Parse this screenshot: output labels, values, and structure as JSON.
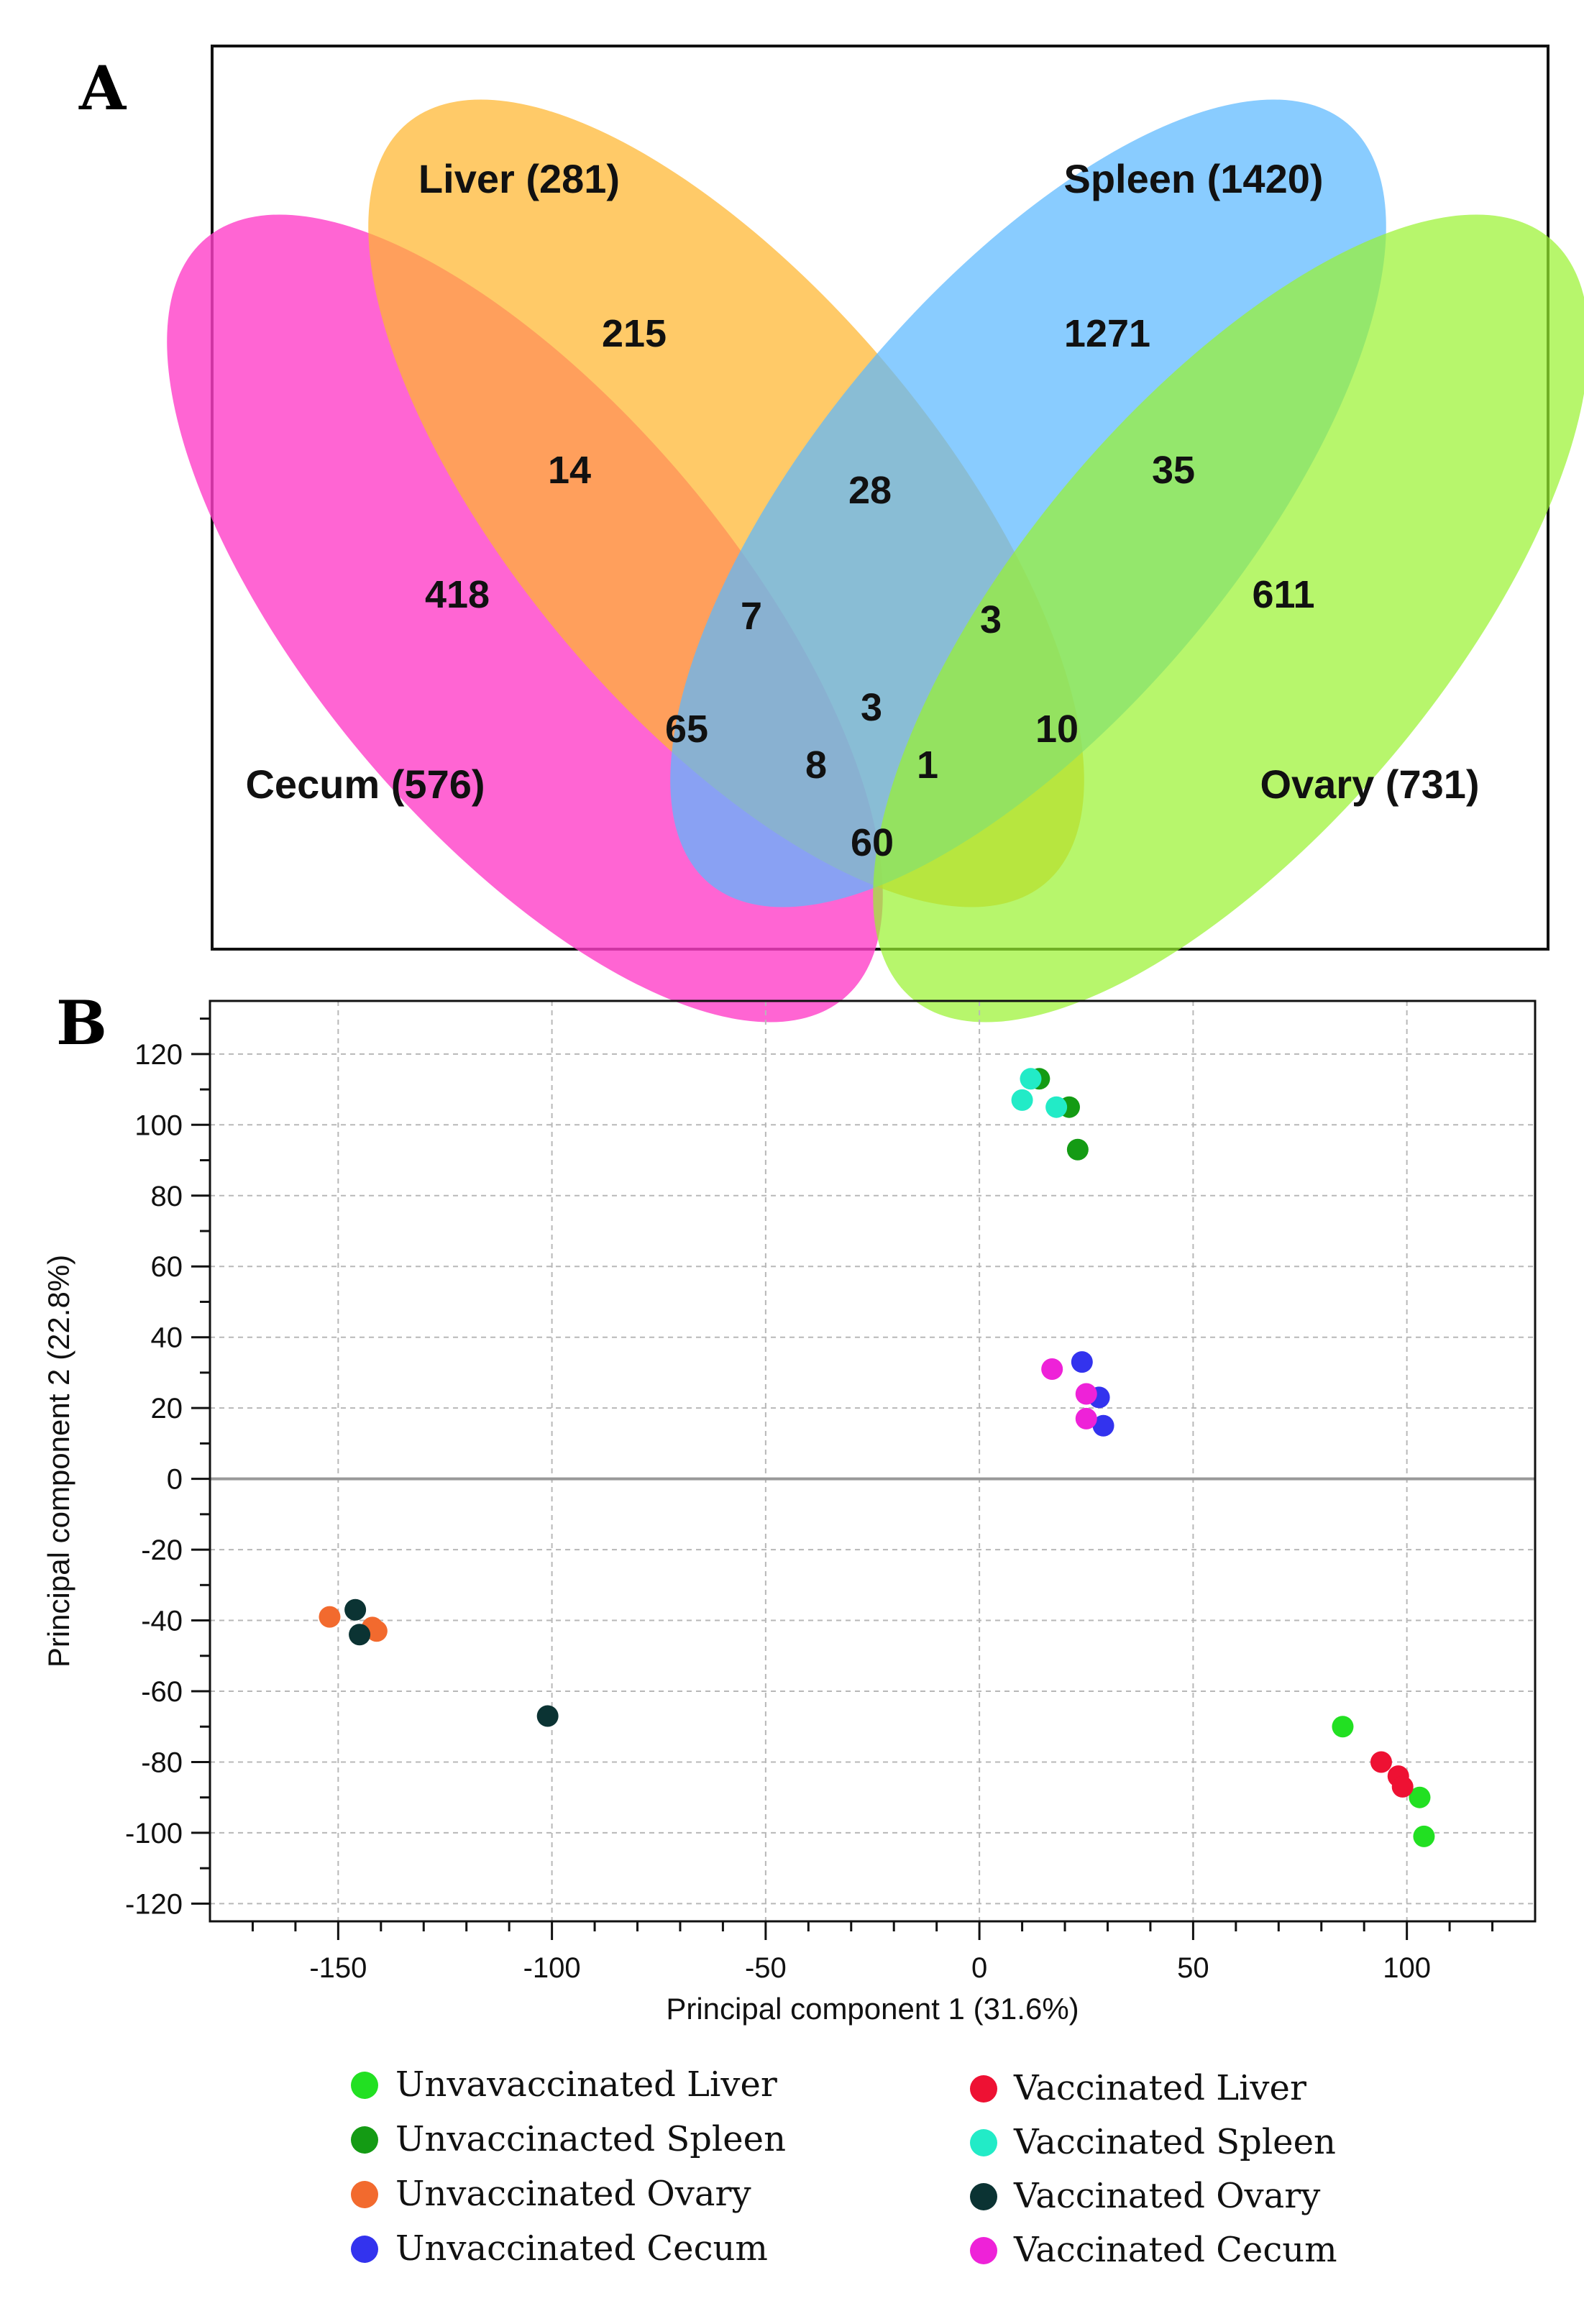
{
  "chart_data": [
    {
      "type": "venn",
      "panel_label": "A",
      "sets": [
        {
          "key": "cecum",
          "name": "Cecum (576)",
          "color": "#ff3ec8"
        },
        {
          "key": "liver",
          "name": "Liver (281)",
          "color": "#ffb52e"
        },
        {
          "key": "spleen",
          "name": "Spleen (1420)",
          "color": "#5cb8ff"
        },
        {
          "key": "ovary",
          "name": "Ovary (731)",
          "color": "#98f22e"
        }
      ],
      "regions": [
        {
          "sets": [
            "liver"
          ],
          "value": "215"
        },
        {
          "sets": [
            "spleen"
          ],
          "value": "1271"
        },
        {
          "sets": [
            "cecum"
          ],
          "value": "418"
        },
        {
          "sets": [
            "ovary"
          ],
          "value": "611"
        },
        {
          "sets": [
            "cecum",
            "liver"
          ],
          "value": "14"
        },
        {
          "sets": [
            "liver",
            "spleen"
          ],
          "value": "28"
        },
        {
          "sets": [
            "spleen",
            "ovary"
          ],
          "value": "35"
        },
        {
          "sets": [
            "cecum",
            "liver",
            "spleen"
          ],
          "value": "7"
        },
        {
          "sets": [
            "liver",
            "spleen",
            "ovary"
          ],
          "value": "3"
        },
        {
          "sets": [
            "cecum",
            "liver",
            "spleen",
            "ovary"
          ],
          "value": "3"
        },
        {
          "sets": [
            "cecum",
            "spleen"
          ],
          "value": "65"
        },
        {
          "sets": [
            "liver",
            "ovary"
          ],
          "value": "10"
        },
        {
          "sets": [
            "cecum",
            "spleen",
            "ovary"
          ],
          "value": "8"
        },
        {
          "sets": [
            "cecum",
            "liver",
            "ovary"
          ],
          "value": "1"
        },
        {
          "sets": [
            "cecum",
            "ovary"
          ],
          "value": "60"
        }
      ]
    },
    {
      "type": "scatter",
      "panel_label": "B",
      "xlabel": "Principal component 1 (31.6%)",
      "ylabel": "Principal component 2 (22.8%)",
      "xlim": [
        -180,
        130
      ],
      "ylim": [
        -125,
        135
      ],
      "xticks": [
        -150,
        -100,
        -50,
        0,
        50,
        100
      ],
      "yticks": [
        120,
        100,
        80,
        60,
        40,
        20,
        0,
        -20,
        -40,
        -60,
        -80,
        -100,
        -120
      ],
      "xtick_labels": [
        "-150",
        "-100",
        "-50",
        "0",
        "50",
        "100"
      ],
      "ytick_labels": [
        "120",
        "100",
        "80",
        "60",
        "40",
        "20",
        "0",
        "-20",
        "-40",
        "-60",
        "-80",
        "-100",
        "-120"
      ],
      "grid": true,
      "series": [
        {
          "name": "Unvavaccinated Liver",
          "color": "#22e022",
          "points": [
            [
              85,
              -70
            ],
            [
              103,
              -90
            ],
            [
              104,
              -101
            ]
          ]
        },
        {
          "name": "Vaccinated Liver",
          "color": "#ee1133",
          "points": [
            [
              94,
              -80
            ],
            [
              98,
              -84
            ],
            [
              99,
              -87
            ]
          ]
        },
        {
          "name": "Unvaccinacted Spleen",
          "color": "#149b14",
          "points": [
            [
              14,
              113
            ],
            [
              21,
              105
            ],
            [
              23,
              93
            ]
          ]
        },
        {
          "name": "Vaccinated Spleen",
          "color": "#22ebc7",
          "points": [
            [
              10,
              107
            ],
            [
              12,
              113
            ],
            [
              18,
              105
            ]
          ]
        },
        {
          "name": "Unvaccinated Ovary",
          "color": "#f26a2e",
          "points": [
            [
              -152,
              -39
            ],
            [
              -142,
              -42
            ],
            [
              -141,
              -43
            ]
          ]
        },
        {
          "name": "Vaccinated Ovary",
          "color": "#0b3333",
          "points": [
            [
              -146,
              -37
            ],
            [
              -145,
              -44
            ],
            [
              -101,
              -67
            ]
          ]
        },
        {
          "name": "Unvaccinated Cecum",
          "color": "#3333ee",
          "points": [
            [
              24,
              33
            ],
            [
              28,
              23
            ],
            [
              29,
              15
            ]
          ]
        },
        {
          "name": "Vaccinated Cecum",
          "color": "#ee22d8",
          "points": [
            [
              17,
              31
            ],
            [
              25,
              24
            ],
            [
              25,
              17
            ]
          ]
        }
      ]
    }
  ]
}
